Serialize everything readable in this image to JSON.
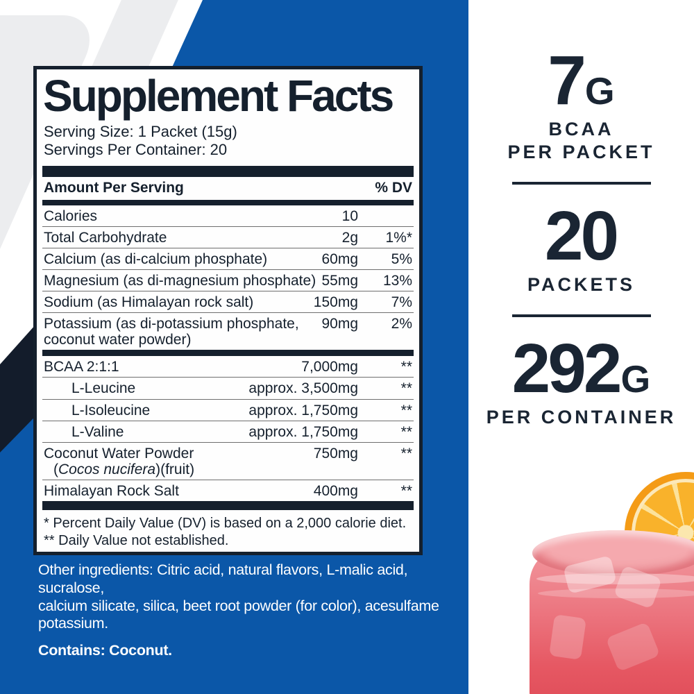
{
  "label": {
    "title": "Supplement Facts",
    "serving_size": "Serving Size: 1 Packet (15g)",
    "servings_per_container": "Servings Per Container: 20",
    "header": {
      "amount": "Amount Per Serving",
      "dv": "% DV"
    },
    "rows": [
      {
        "name": "Calories",
        "amount": "10",
        "dv": ""
      },
      {
        "name": "Total Carbohydrate",
        "amount": "2g",
        "dv": "1%*"
      },
      {
        "name": "Calcium (as di-calcium phosphate)",
        "amount": "60mg",
        "dv": "5%"
      },
      {
        "name": "Magnesium (as di-magnesium phosphate)",
        "amount": "55mg",
        "dv": "13%"
      },
      {
        "name": "Sodium (as Himalayan rock salt)",
        "amount": "150mg",
        "dv": "7%"
      },
      {
        "name": "Potassium (as di-potassium phosphate,",
        "name2_pre": "coconut water powder)",
        "name2_italic": "",
        "name2_post": "",
        "amount": "90mg",
        "dv": "2%",
        "no_rule": true,
        "bar_after": "bar3"
      },
      {
        "name": "BCAA 2:1:1",
        "amount": "7,000mg",
        "dv": "**"
      },
      {
        "name": "L-Leucine",
        "amount": "approx. 3,500mg",
        "dv": "**",
        "indent": true
      },
      {
        "name": "L-Isoleucine",
        "amount": "approx. 1,750mg",
        "dv": "**",
        "indent": true
      },
      {
        "name": "L-Valine",
        "amount": "approx. 1,750mg",
        "dv": "**",
        "indent": true
      },
      {
        "name": "Coconut Water Powder",
        "name2_pre": "(",
        "name2_italic": "Cocos nucifera",
        "name2_post": ")(fruit)",
        "name2_pad": true,
        "amount": "750mg",
        "dv": "**"
      },
      {
        "name": "Himalayan Rock Salt",
        "amount": "400mg",
        "dv": "**",
        "no_rule": true,
        "bar_after": "bar4"
      }
    ],
    "footnotes": [
      "* Percent Daily Value (DV) is based on a 2,000 calorie diet.",
      "** Daily Value not established."
    ]
  },
  "other_ingredients_lines": [
    "Other ingredients: Citric acid, natural flavors, L-malic acid, sucralose,",
    "calcium silicate, silica, beet root powder (for color), acesulfame",
    "potassium."
  ],
  "contains": "Contains: Coconut.",
  "stats": [
    {
      "value": "7",
      "unit": "G",
      "label_lines": [
        "BCAA",
        "PER PACKET"
      ]
    },
    {
      "value": "20",
      "unit": "",
      "label_lines": [
        "PACKETS"
      ]
    },
    {
      "value": "292",
      "unit": "G",
      "label_lines": [
        "PER CONTAINER"
      ]
    }
  ],
  "colors": {
    "brand_blue": "#0b57a8",
    "dark_navy": "#15202d",
    "watermark_gray": "#ecedef",
    "drink_pink": "#e65863",
    "orange_peel": "#f49b16"
  }
}
